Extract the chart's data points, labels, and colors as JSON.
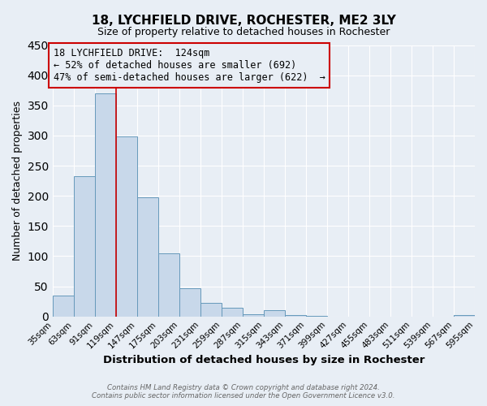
{
  "title": "18, LYCHFIELD DRIVE, ROCHESTER, ME2 3LY",
  "subtitle": "Size of property relative to detached houses in Rochester",
  "xlabel": "Distribution of detached houses by size in Rochester",
  "ylabel": "Number of detached properties",
  "bar_color": "#c8d8ea",
  "bar_edge_color": "#6699bb",
  "background_color": "#e8eef5",
  "grid_color": "white",
  "annotation_box_color": "#cc0000",
  "vline_color": "#cc0000",
  "bins": [
    35,
    63,
    91,
    119,
    147,
    175,
    203,
    231,
    259,
    287,
    315,
    343,
    371,
    399,
    427,
    455,
    483,
    511,
    539,
    567,
    595
  ],
  "tick_labels": [
    "35sqm",
    "63sqm",
    "91sqm",
    "119sqm",
    "147sqm",
    "175sqm",
    "203sqm",
    "231sqm",
    "259sqm",
    "287sqm",
    "315sqm",
    "343sqm",
    "371sqm",
    "399sqm",
    "427sqm",
    "455sqm",
    "483sqm",
    "511sqm",
    "539sqm",
    "567sqm",
    "595sqm"
  ],
  "bar_heights": [
    35,
    233,
    370,
    298,
    198,
    105,
    47,
    23,
    15,
    3,
    10,
    2,
    1,
    0,
    0,
    0,
    0,
    0,
    0,
    2
  ],
  "ylim": [
    0,
    450
  ],
  "yticks": [
    0,
    50,
    100,
    150,
    200,
    250,
    300,
    350,
    400,
    450
  ],
  "annotation_line1": "18 LYCHFIELD DRIVE:  124sqm",
  "annotation_line2": "← 52% of detached houses are smaller (692)",
  "annotation_line3": "47% of semi-detached houses are larger (622)  →",
  "footer_line1": "Contains HM Land Registry data © Crown copyright and database right 2024.",
  "footer_line2": "Contains public sector information licensed under the Open Government Licence v3.0."
}
